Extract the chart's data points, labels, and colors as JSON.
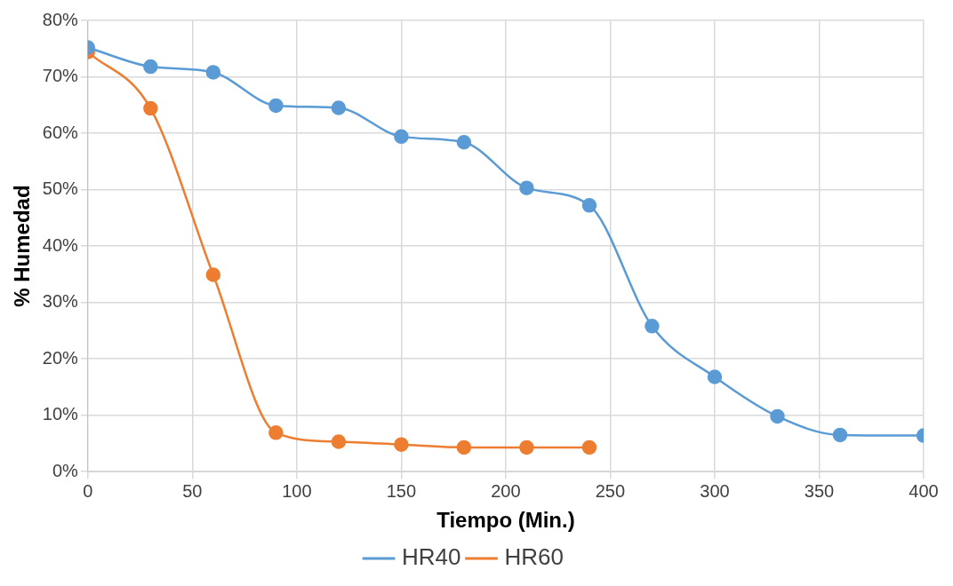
{
  "chart_data": {
    "type": "line",
    "xlabel": "Tiempo (Min.)",
    "ylabel": "% Humedad",
    "xlim": [
      0,
      400
    ],
    "xticks": [
      0,
      50,
      100,
      150,
      200,
      250,
      300,
      350,
      400
    ],
    "ylim": [
      0,
      80
    ],
    "yticks": [
      {
        "value": 0,
        "label": "0%"
      },
      {
        "value": 10,
        "label": "10%"
      },
      {
        "value": 20,
        "label": "20%"
      },
      {
        "value": 30,
        "label": "30%"
      },
      {
        "value": 40,
        "label": "40%"
      },
      {
        "value": 50,
        "label": "50%"
      },
      {
        "value": 60,
        "label": "60%"
      },
      {
        "value": 70,
        "label": "70%"
      },
      {
        "value": 80,
        "label": "80%"
      }
    ],
    "grid": true,
    "legend": "bottom",
    "marker": "circle",
    "series": [
      {
        "name": "HR40",
        "color": "#5b9bd5",
        "x": [
          0,
          30,
          60,
          90,
          120,
          150,
          180,
          210,
          240,
          270,
          300,
          330,
          360,
          400
        ],
        "values": [
          75.2,
          71.8,
          70.8,
          64.9,
          64.5,
          59.4,
          58.4,
          50.3,
          47.2,
          25.8,
          16.8,
          9.8,
          6.5,
          6.4
        ]
      },
      {
        "name": "HR60",
        "color": "#ed7d31",
        "x": [
          0,
          30,
          60,
          90,
          120,
          150,
          180,
          210,
          240
        ],
        "values": [
          74.4,
          64.4,
          34.9,
          6.9,
          5.3,
          4.8,
          4.3,
          4.3,
          4.3
        ]
      }
    ]
  }
}
